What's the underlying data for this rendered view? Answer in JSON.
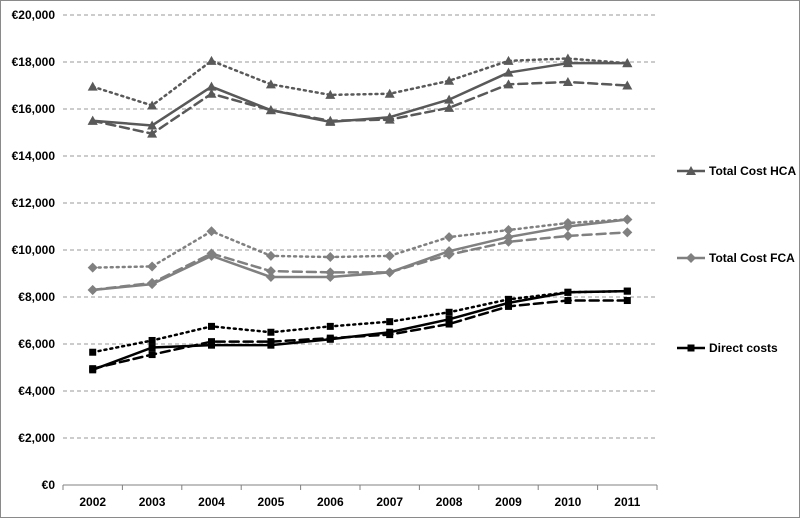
{
  "chart_data": {
    "type": "line",
    "x": [
      "2002",
      "2003",
      "2004",
      "2005",
      "2006",
      "2007",
      "2008",
      "2009",
      "2010",
      "2011"
    ],
    "ylim": [
      0,
      20000
    ],
    "ytick_values": [
      0,
      2000,
      4000,
      6000,
      8000,
      10000,
      12000,
      14000,
      16000,
      18000,
      20000
    ],
    "ytick_labels": [
      "€0",
      "€2,000",
      "€4,000",
      "€6,000",
      "€8,000",
      "€10,000",
      "€12,000",
      "€14,000",
      "€16,000",
      "€18,000",
      "€20,000"
    ],
    "grid": "horizontal dashed",
    "legend_position": "right",
    "groups": [
      {
        "name": "Total Cost HCA",
        "color": "#595959",
        "marker": "triangle",
        "series": [
          {
            "style": "solid",
            "values": [
              15500,
              15300,
              16950,
              15950,
              15450,
              15650,
              16400,
              17550,
              17950,
              17950
            ]
          },
          {
            "style": "dotted",
            "values": [
              16950,
              16150,
              18050,
              17050,
              16600,
              16650,
              17200,
              18050,
              18150,
              17950
            ]
          },
          {
            "style": "dashed",
            "values": [
              15500,
              14950,
              16650,
              15950,
              15500,
              15550,
              16050,
              17050,
              17150,
              17000
            ]
          }
        ]
      },
      {
        "name": "Total Cost FCA",
        "color": "#808080",
        "marker": "diamond",
        "series": [
          {
            "style": "solid",
            "values": [
              8300,
              8550,
              9750,
              8850,
              8850,
              9050,
              9950,
              10550,
              11000,
              11300
            ]
          },
          {
            "style": "dotted",
            "values": [
              9250,
              9300,
              10800,
              9750,
              9700,
              9750,
              10550,
              10850,
              11150,
              11300
            ]
          },
          {
            "style": "dashed",
            "values": [
              8300,
              8600,
              9850,
              9100,
              9050,
              9050,
              9800,
              10350,
              10600,
              10750
            ]
          }
        ]
      },
      {
        "name": "Direct costs",
        "color": "#000000",
        "marker": "square",
        "series": [
          {
            "style": "solid",
            "values": [
              4900,
              5850,
              5950,
              5950,
              6200,
              6500,
              7050,
              7750,
              8200,
              8250
            ]
          },
          {
            "style": "dotted",
            "values": [
              5650,
              6150,
              6750,
              6500,
              6750,
              6950,
              7350,
              7900,
              8200,
              8250
            ]
          },
          {
            "style": "dashed",
            "values": [
              4950,
              5550,
              6100,
              6100,
              6250,
              6400,
              6850,
              7600,
              7850,
              7850
            ]
          }
        ]
      }
    ]
  }
}
